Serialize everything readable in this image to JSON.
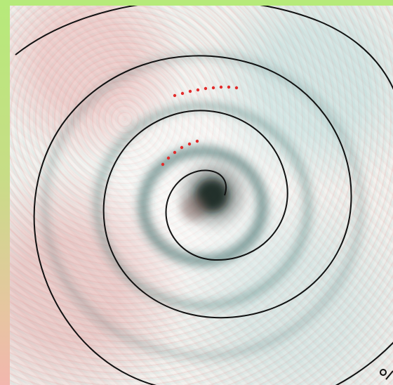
{
  "image": {
    "subject": "spiral-over-circular-pattern",
    "colors": {
      "frame_top": "#b6ea7a",
      "frame_bottom": "#f2b7ae",
      "spiral_stroke": "#111111",
      "dots": "#e12b2b",
      "dark_ring": "#2f5f5c"
    }
  }
}
